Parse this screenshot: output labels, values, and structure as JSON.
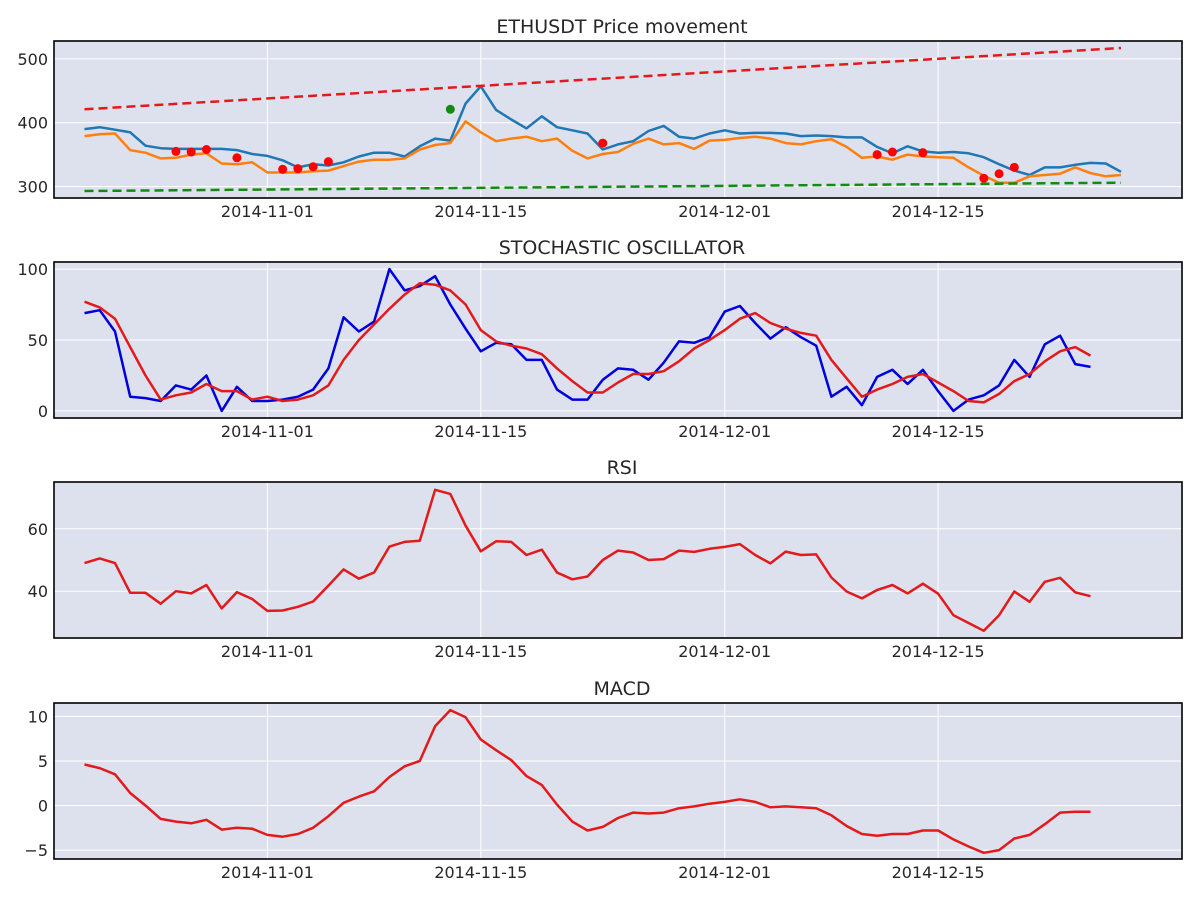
{
  "colors": {
    "panel_bg": "#dde1ee",
    "grid": "#ffffff",
    "frame": "#000000",
    "price_close": "#1f77b4",
    "price_low": "#ff7f0e",
    "resistance": "#e31a1c",
    "support": "#138a13",
    "marker_red": "#ff0000",
    "marker_green": "#138a13",
    "stoch_k": "#0000dd",
    "stoch_d": "#e31a1c",
    "rsi": "#e31a1c",
    "macd": "#e31a1c"
  },
  "chart_data": [
    {
      "type": "line",
      "title": "ETHUSDT Price movement",
      "x_start": "2014-10-20",
      "x_step_days": 1,
      "xlim": [
        "2014-10-18",
        "2014-12-31"
      ],
      "xticks": [
        "2014-11-01",
        "2014-11-15",
        "2014-12-01",
        "2014-12-15"
      ],
      "ylim": [
        282,
        528
      ],
      "yticks": [
        300,
        400,
        500
      ],
      "grid": true,
      "series": [
        {
          "key": "close",
          "style": "solid",
          "values": [
            390,
            393,
            389,
            385,
            364,
            360,
            359,
            359,
            359,
            359,
            357,
            351,
            348,
            341,
            330,
            335,
            333,
            338,
            347,
            353,
            353,
            347,
            363,
            375,
            372,
            430,
            457,
            420,
            405,
            391,
            410,
            393,
            388,
            383,
            358,
            366,
            371,
            387,
            395,
            378,
            375,
            383,
            388,
            383,
            384,
            384,
            383,
            379,
            380,
            379,
            377,
            377,
            362,
            352,
            363,
            355,
            353,
            354,
            352,
            346,
            335,
            325,
            318,
            330,
            330,
            334,
            337,
            336,
            323
          ]
        },
        {
          "key": "low",
          "style": "solid",
          "values": [
            379,
            382,
            383,
            357,
            353,
            344,
            345,
            350,
            352,
            336,
            335,
            338,
            322,
            322,
            322,
            324,
            325,
            332,
            339,
            342,
            342,
            344,
            358,
            365,
            368,
            402,
            385,
            371,
            375,
            378,
            371,
            375,
            356,
            344,
            351,
            354,
            367,
            375,
            366,
            368,
            359,
            372,
            373,
            376,
            378,
            375,
            368,
            366,
            371,
            374,
            362,
            345,
            347,
            342,
            350,
            347,
            346,
            345,
            330,
            317,
            306,
            306,
            316,
            318,
            320,
            330,
            321,
            316,
            318
          ]
        },
        {
          "key": "resistance",
          "style": "dashed",
          "values": [
            421,
            517
          ]
        },
        {
          "key": "support",
          "style": "dashed",
          "values": [
            293,
            306
          ]
        }
      ],
      "markers_red": [
        {
          "x": "2014-10-26",
          "y": 355
        },
        {
          "x": "2014-10-27",
          "y": 354
        },
        {
          "x": "2014-10-28",
          "y": 358
        },
        {
          "x": "2014-10-30",
          "y": 345
        },
        {
          "x": "2014-11-02",
          "y": 327
        },
        {
          "x": "2014-11-03",
          "y": 328
        },
        {
          "x": "2014-11-04",
          "y": 331
        },
        {
          "x": "2014-11-05",
          "y": 339
        },
        {
          "x": "2014-11-23",
          "y": 368
        },
        {
          "x": "2014-12-11",
          "y": 350
        },
        {
          "x": "2014-12-12",
          "y": 354
        },
        {
          "x": "2014-12-14",
          "y": 353
        },
        {
          "x": "2014-12-18",
          "y": 313
        },
        {
          "x": "2014-12-19",
          "y": 320
        },
        {
          "x": "2014-12-20",
          "y": 330
        }
      ],
      "markers_green": [
        {
          "x": "2014-11-13",
          "y": 421
        }
      ]
    },
    {
      "type": "line",
      "title": "STOCHASTIC OSCILLATOR",
      "x_start": "2014-10-20",
      "x_step_days": 1,
      "xlim": [
        "2014-10-18",
        "2014-12-31"
      ],
      "xticks": [
        "2014-11-01",
        "2014-11-15",
        "2014-12-01",
        "2014-12-15"
      ],
      "ylim": [
        -5,
        105
      ],
      "yticks": [
        0,
        50,
        100
      ],
      "grid": true,
      "series": [
        {
          "key": "k",
          "values": [
            69,
            71,
            56,
            10,
            9,
            7,
            18,
            15,
            25,
            0,
            17,
            7,
            7,
            8,
            10,
            15,
            30,
            66,
            56,
            63,
            100,
            85,
            88,
            95,
            75,
            58,
            42,
            48,
            47,
            36,
            36,
            15,
            8,
            8,
            22,
            30,
            29,
            22,
            34,
            49,
            48,
            52,
            70,
            74,
            62,
            51,
            59,
            52,
            46,
            10,
            17,
            4,
            24,
            29,
            19,
            29,
            14,
            0,
            8,
            11,
            18,
            36,
            24,
            47,
            53,
            33,
            31
          ]
        },
        {
          "key": "d",
          "values": [
            77,
            73,
            65,
            45,
            25,
            8,
            11,
            13,
            19,
            14,
            14,
            8,
            10,
            7,
            8,
            11,
            18,
            36,
            50,
            61,
            72,
            82,
            90,
            89,
            85,
            75,
            57,
            49,
            46,
            44,
            40,
            30,
            21,
            13,
            13,
            20,
            26,
            26,
            28,
            35,
            44,
            50,
            57,
            65,
            69,
            62,
            58,
            55,
            53,
            36,
            23,
            10,
            15,
            19,
            24,
            26,
            20,
            14,
            7,
            6,
            12,
            21,
            26,
            35,
            42,
            45,
            39
          ]
        }
      ]
    },
    {
      "type": "line",
      "title": "RSI",
      "x_start": "2014-10-20",
      "x_step_days": 1,
      "xlim": [
        "2014-10-18",
        "2014-12-31"
      ],
      "xticks": [
        "2014-11-01",
        "2014-11-15",
        "2014-12-01",
        "2014-12-15"
      ],
      "ylim": [
        25,
        75
      ],
      "yticks": [
        40,
        60
      ],
      "grid": true,
      "series": [
        {
          "key": "rsi",
          "values": [
            49,
            50.5,
            49,
            39.5,
            39.5,
            36,
            40,
            39.3,
            42,
            34.5,
            39.7,
            37.5,
            33.7,
            33.8,
            35,
            36.7,
            41.8,
            47,
            44,
            46,
            54.3,
            55.8,
            56.2,
            72.5,
            71.2,
            61,
            52.8,
            56,
            55.8,
            51.6,
            53.3,
            46,
            43.8,
            44.7,
            50,
            53,
            52.4,
            50,
            50.3,
            53,
            52.6,
            53.6,
            54.2,
            55.1,
            51.6,
            48.9,
            52.7,
            51.6,
            51.8,
            44.4,
            39.9,
            37.7,
            40.4,
            42,
            39.3,
            42.4,
            39.2,
            32.3,
            29.8,
            27.3,
            32.3,
            39.9,
            36.6,
            43,
            44.3,
            39.6,
            38.4
          ]
        }
      ]
    },
    {
      "type": "line",
      "title": "MACD",
      "x_start": "2014-10-20",
      "x_step_days": 1,
      "xlim": [
        "2014-10-18",
        "2014-12-31"
      ],
      "xticks": [
        "2014-11-01",
        "2014-11-15",
        "2014-12-01",
        "2014-12-15"
      ],
      "ylim": [
        -6,
        11.5
      ],
      "yticks": [
        -5,
        0,
        5,
        10
      ],
      "grid": true,
      "series": [
        {
          "key": "macd",
          "values": [
            4.6,
            4.2,
            3.5,
            1.4,
            0,
            -1.5,
            -1.8,
            -2,
            -1.6,
            -2.7,
            -2.5,
            -2.6,
            -3.3,
            -3.5,
            -3.2,
            -2.5,
            -1.2,
            0.3,
            1,
            1.6,
            3.2,
            4.4,
            5,
            8.9,
            10.7,
            9.9,
            7.4,
            6.2,
            5.1,
            3.3,
            2.3,
            0.1,
            -1.8,
            -2.8,
            -2.4,
            -1.4,
            -0.8,
            -0.9,
            -0.8,
            -0.3,
            -0.1,
            0.2,
            0.4,
            0.7,
            0.4,
            -0.2,
            -0.1,
            -0.2,
            -0.3,
            -1.1,
            -2.3,
            -3.2,
            -3.4,
            -3.2,
            -3.2,
            -2.8,
            -2.8,
            -3.8,
            -4.6,
            -5.3,
            -5,
            -3.7,
            -3.3,
            -2.1,
            -0.8,
            -0.7,
            -0.7
          ]
        }
      ]
    }
  ]
}
